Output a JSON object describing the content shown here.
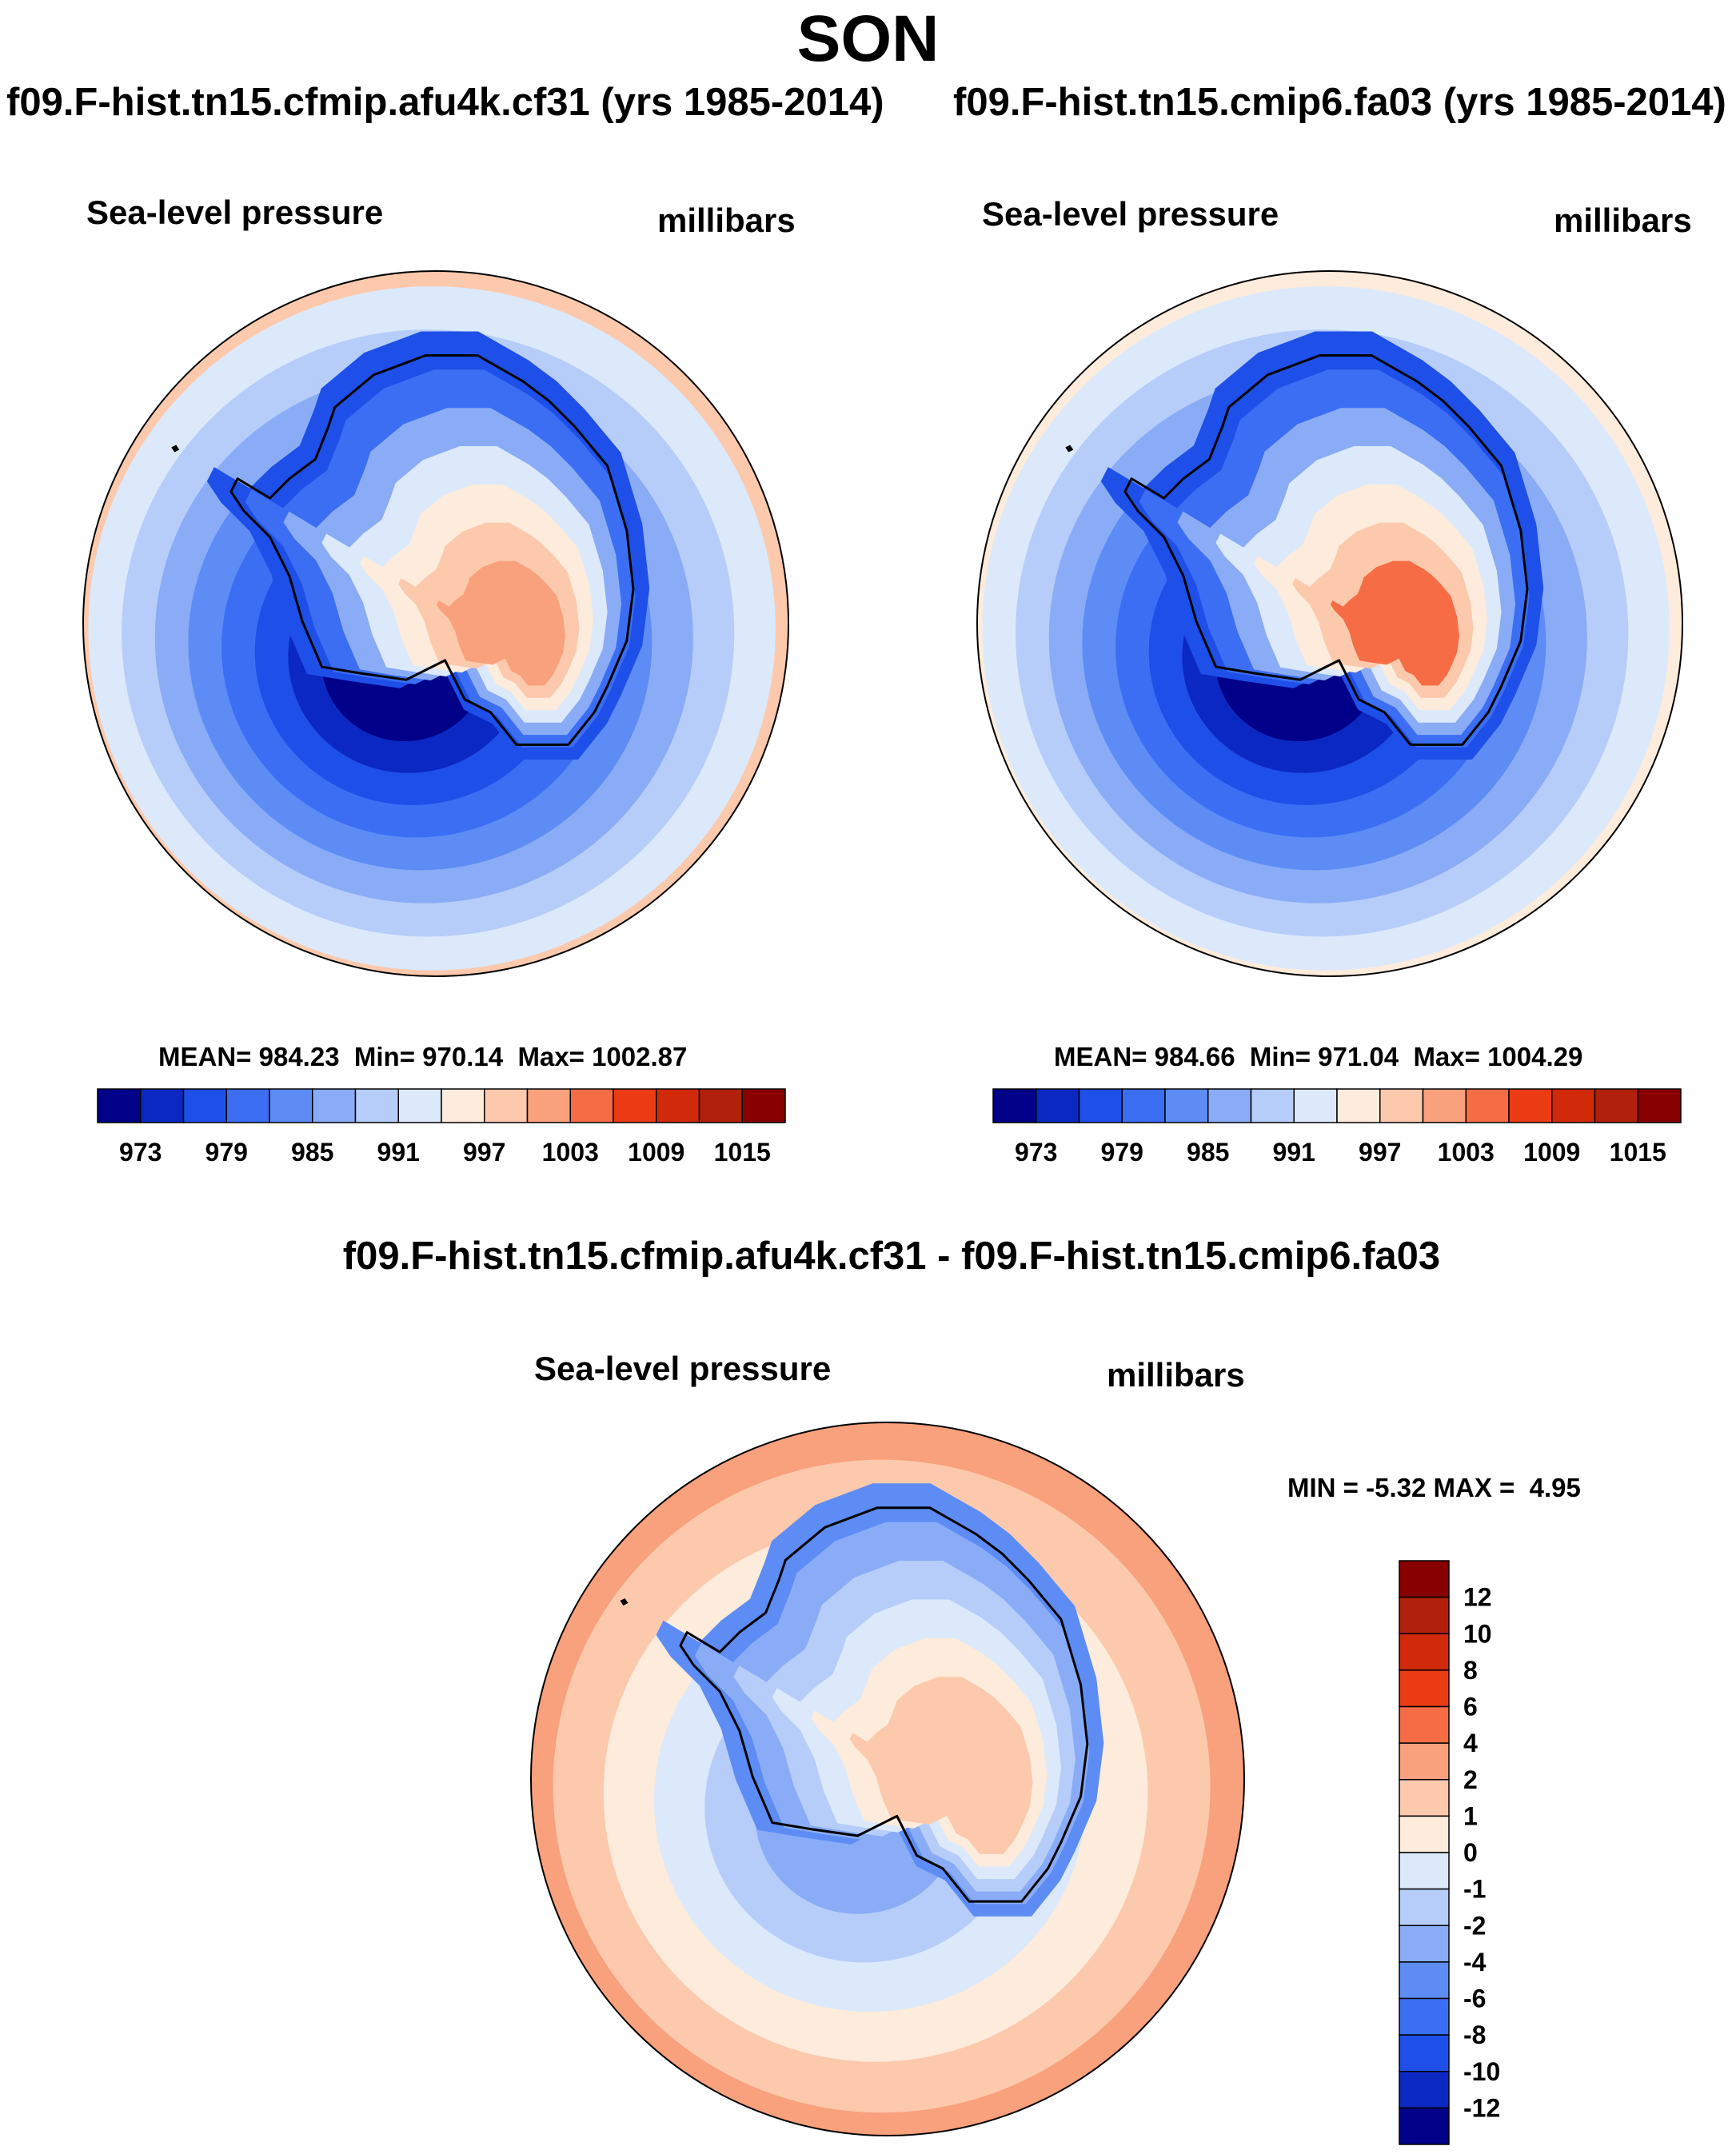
{
  "figure": {
    "title": "SON",
    "left_case": "f09.F-hist.tn15.cfmip.afu4k.cf31 (yrs 1985-2014)",
    "right_case": "f09.F-hist.tn15.cmip6.fa03 (yrs 1985-2014)",
    "diff_case": "f09.F-hist.tn15.cfmip.afu4k.cf31 - f09.F-hist.tn15.cmip6.fa03"
  },
  "chart_data": [
    {
      "type": "heatmap",
      "projection": "south polar stereographic",
      "variable": "Sea-level pressure",
      "units": "millibars",
      "stats": {
        "mean_label": "MEAN=",
        "mean": "984.23",
        "min_label": "Min=",
        "min": "970.14",
        "max_label": "Max=",
        "max": "1002.87"
      },
      "levels": [
        973,
        976,
        979,
        982,
        985,
        988,
        991,
        994,
        997,
        1000,
        1003,
        1006,
        1009,
        1012,
        1015
      ],
      "tick_labels": [
        "973",
        "979",
        "985",
        "991",
        "997",
        "1003",
        "1009",
        "1015"
      ],
      "colors": [
        "#000088",
        "#0b28c2",
        "#1e4fe8",
        "#3b6ef3",
        "#5d8cf5",
        "#8aacf6",
        "#b6cdf9",
        "#dce9fb",
        "#fdebdc",
        "#fcc9ad",
        "#f9a07c",
        "#f56c45",
        "#ec3c13",
        "#d02a0b",
        "#b0200b",
        "#880000"
      ],
      "field_pattern": [
        "#fcc9ad",
        "#dce9fb",
        "#b6cdf9",
        "#8aacf6",
        "#5d8cf5",
        "#3b6ef3",
        "#1e4fe8",
        "#0b28c2",
        "#000088"
      ],
      "interior_pattern": [
        "#1e4fe8",
        "#3b6ef3",
        "#8aacf6",
        "#dce9fb",
        "#fdebdc",
        "#fcc9ad",
        "#f9a07c"
      ]
    },
    {
      "type": "heatmap",
      "projection": "south polar stereographic",
      "variable": "Sea-level pressure",
      "units": "millibars",
      "stats": {
        "mean_label": "MEAN=",
        "mean": "984.66",
        "min_label": "Min=",
        "min": "971.04",
        "max_label": "Max=",
        "max": "1004.29"
      },
      "levels": [
        973,
        976,
        979,
        982,
        985,
        988,
        991,
        994,
        997,
        1000,
        1003,
        1006,
        1009,
        1012,
        1015
      ],
      "tick_labels": [
        "973",
        "979",
        "985",
        "991",
        "997",
        "1003",
        "1009",
        "1015"
      ],
      "colors": [
        "#000088",
        "#0b28c2",
        "#1e4fe8",
        "#3b6ef3",
        "#5d8cf5",
        "#8aacf6",
        "#b6cdf9",
        "#dce9fb",
        "#fdebdc",
        "#fcc9ad",
        "#f9a07c",
        "#f56c45",
        "#ec3c13",
        "#d02a0b",
        "#b0200b",
        "#880000"
      ],
      "field_pattern": [
        "#fdebdc",
        "#dce9fb",
        "#b6cdf9",
        "#8aacf6",
        "#5d8cf5",
        "#3b6ef3",
        "#1e4fe8",
        "#0b28c2",
        "#000088"
      ],
      "interior_pattern": [
        "#1e4fe8",
        "#3b6ef3",
        "#8aacf6",
        "#dce9fb",
        "#fdebdc",
        "#fcc9ad",
        "#f56c45"
      ]
    },
    {
      "type": "heatmap",
      "projection": "south polar stereographic",
      "variable": "Sea-level pressure",
      "units": "millibars",
      "stats": {
        "min_label": "MIN =",
        "min": "-5.32",
        "max_label": "MAX =",
        "max": "4.95"
      },
      "levels": [
        -12,
        -10,
        -8,
        -6,
        -4,
        -2,
        -1,
        0,
        1,
        2,
        4,
        6,
        8,
        10,
        12
      ],
      "tick_labels": [
        "12",
        "10",
        "8",
        "6",
        "4",
        "2",
        "1",
        "0",
        "-1",
        "-2",
        "-4",
        "-6",
        "-8",
        "-10",
        "-12"
      ],
      "colors": [
        "#000088",
        "#0b28c2",
        "#1e4fe8",
        "#3b6ef3",
        "#5d8cf5",
        "#8aacf6",
        "#b6cdf9",
        "#dce9fb",
        "#fdebdc",
        "#fcc9ad",
        "#f9a07c",
        "#f56c45",
        "#ec3c13",
        "#d02a0b",
        "#b0200b",
        "#880000"
      ],
      "field_pattern": [
        "#f9a07c",
        "#fcc9ad",
        "#fdebdc",
        "#dce9fb",
        "#b6cdf9",
        "#8aacf6"
      ],
      "interior_pattern": [
        "#5d8cf5",
        "#8aacf6",
        "#b6cdf9",
        "#dce9fb",
        "#fdebdc",
        "#fcc9ad"
      ]
    }
  ]
}
